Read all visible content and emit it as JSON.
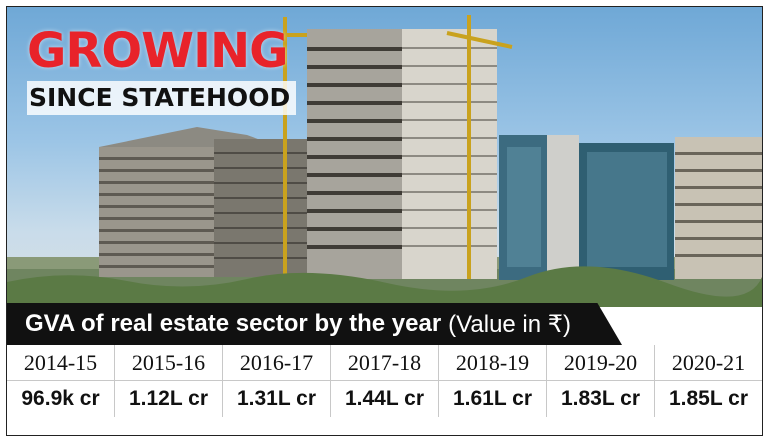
{
  "headline": {
    "main": "GROWING",
    "sub": "SINCE STATEHOOD"
  },
  "title_bar": {
    "bold": "GVA of real estate sector by the year",
    "light": "(Value in ₹)"
  },
  "table": {
    "columns": [
      {
        "year": "2014-15",
        "value": "96.9k cr"
      },
      {
        "year": "2015-16",
        "value": "1.12L cr"
      },
      {
        "year": "2016-17",
        "value": "1.31L cr"
      },
      {
        "year": "2017-18",
        "value": "1.44L cr"
      },
      {
        "year": "2018-19",
        "value": "1.61L cr"
      },
      {
        "year": "2019-20",
        "value": "1.83L cr"
      },
      {
        "year": "2020-21",
        "value": "1.85L cr"
      }
    ]
  },
  "colors": {
    "headline_red": "#e8232a",
    "title_bar_bg": "#111111"
  }
}
